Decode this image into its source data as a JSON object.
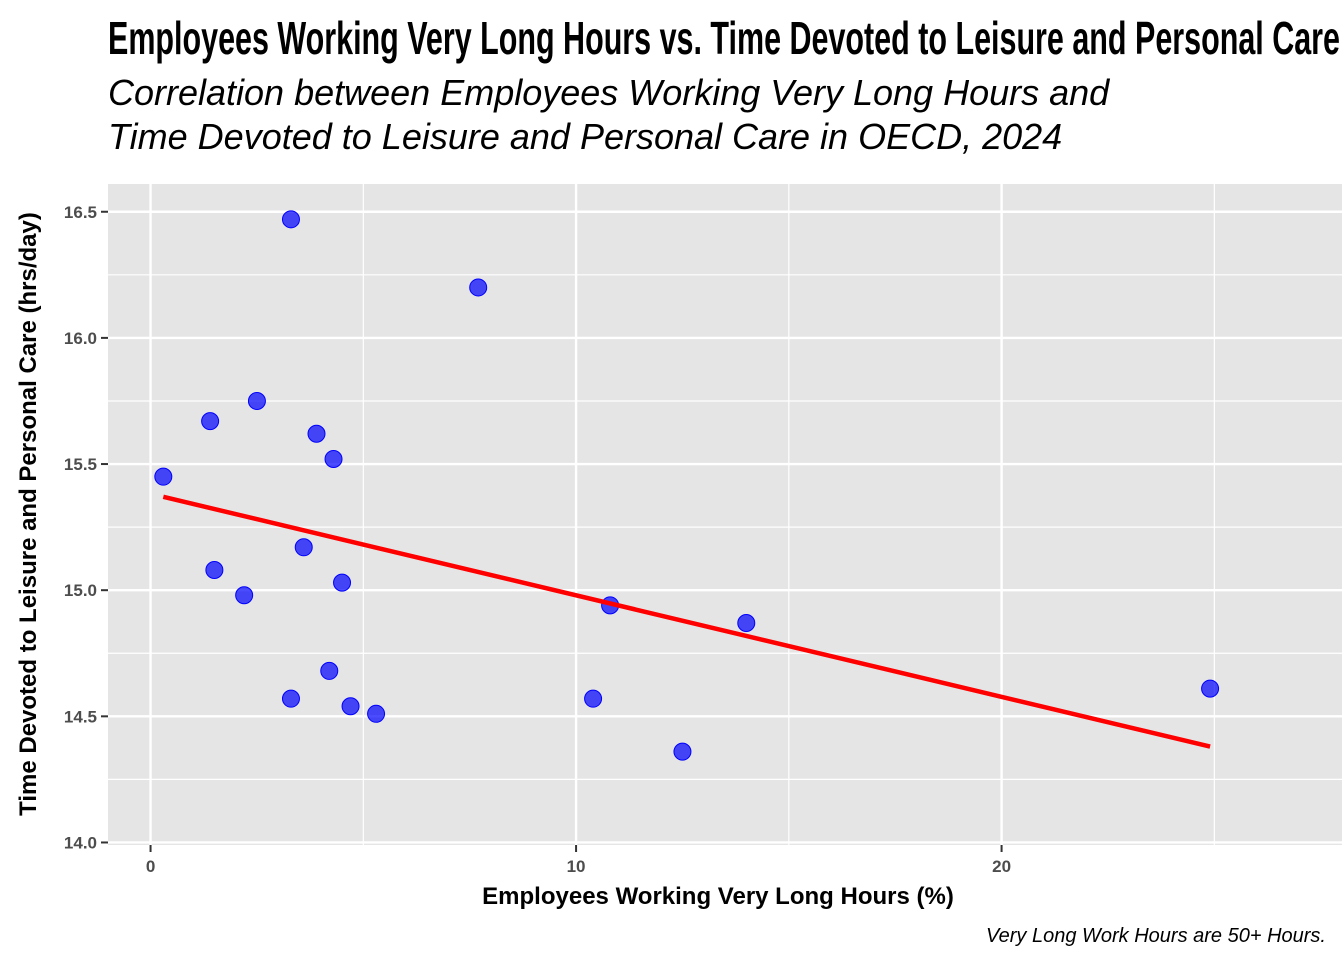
{
  "chart_data": {
    "type": "scatter",
    "title": "Employees Working Very Long Hours vs. Time Devoted to Leisure and Personal Care",
    "subtitle_lines": [
      "Correlation between Employees Working Very Long Hours and",
      "Time Devoted to Leisure and Personal Care in OECD, 2024"
    ],
    "xlabel": "Employees Working Very Long Hours (%)",
    "ylabel": "Time Devoted to Leisure and Personal Care (hrs/day)",
    "caption": "Very Long Work Hours are 50+ Hours.",
    "xlim": [
      -1.0,
      28.0
    ],
    "ylim": [
      13.99,
      16.61
    ],
    "x_ticks": [
      0,
      10,
      20
    ],
    "x_tick_labels": [
      "0",
      "10",
      "20"
    ],
    "y_ticks": [
      14.0,
      14.5,
      15.0,
      15.5,
      16.0,
      16.5
    ],
    "y_tick_labels": [
      "14.0",
      "14.5",
      "15.0",
      "15.5",
      "16.0",
      "16.5"
    ],
    "grid": true,
    "points": {
      "x": [
        3.3,
        7.7,
        2.5,
        1.4,
        3.9,
        4.3,
        0.3,
        3.6,
        1.5,
        4.5,
        2.2,
        10.8,
        14.0,
        4.2,
        3.3,
        10.4,
        4.7,
        5.3,
        24.9,
        12.5
      ],
      "y": [
        16.47,
        16.2,
        15.75,
        15.67,
        15.62,
        15.52,
        15.45,
        15.17,
        15.08,
        15.03,
        14.98,
        14.94,
        14.87,
        14.68,
        14.57,
        14.57,
        14.54,
        14.51,
        14.61,
        14.36
      ]
    },
    "trend_line": {
      "x": [
        0.3,
        24.9
      ],
      "y": [
        15.37,
        14.38
      ]
    },
    "colors": {
      "point_fill": "#0000ff",
      "point_opacity": 0.7,
      "trend_line": "#ff0000",
      "panel_background": "#e5e5e5",
      "grid_major": "#ffffff"
    }
  }
}
